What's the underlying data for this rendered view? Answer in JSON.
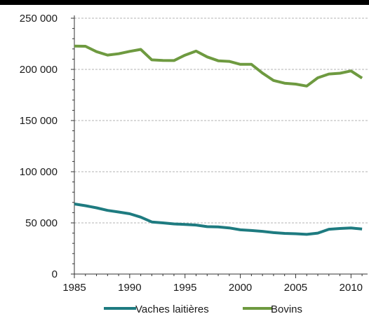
{
  "chart_data": {
    "type": "line",
    "title": "",
    "xlabel": "",
    "ylabel": "",
    "xlim": [
      1985,
      2011
    ],
    "ylim": [
      0,
      250000
    ],
    "grid": true,
    "legend_position": "bottom",
    "x_ticks": [
      1985,
      1990,
      1995,
      2000,
      2005,
      2010
    ],
    "x_tick_labels": [
      "1985",
      "1990",
      "1995",
      "2000",
      "2005",
      "2010"
    ],
    "y_ticks": [
      0,
      50000,
      100000,
      150000,
      200000,
      250000
    ],
    "y_tick_labels": [
      "0",
      "50 000",
      "100 000",
      "150 000",
      "200 000",
      "250 000"
    ],
    "x": [
      1985,
      1986,
      1987,
      1988,
      1989,
      1990,
      1991,
      1992,
      1993,
      1994,
      1995,
      1996,
      1997,
      1998,
      1999,
      2000,
      2001,
      2002,
      2003,
      2004,
      2005,
      2006,
      2007,
      2008,
      2009,
      2010,
      2011
    ],
    "series": [
      {
        "name": "Vaches laitières",
        "color": "#1e7b80",
        "values": [
          68500,
          66800,
          64700,
          62200,
          60600,
          58900,
          55600,
          50900,
          50000,
          49000,
          48500,
          47900,
          46300,
          46000,
          45100,
          43200,
          42500,
          41700,
          40500,
          39700,
          39400,
          38800,
          40000,
          43800,
          44500,
          45100,
          44000
        ]
      },
      {
        "name": "Bovins",
        "color": "#6e9a40",
        "values": [
          222800,
          222600,
          217300,
          214000,
          215300,
          217600,
          219500,
          209300,
          208800,
          208600,
          213900,
          217900,
          212200,
          208400,
          207800,
          204900,
          204900,
          196400,
          189200,
          186500,
          185600,
          183700,
          191800,
          195500,
          196200,
          198500,
          191500
        ]
      }
    ]
  }
}
